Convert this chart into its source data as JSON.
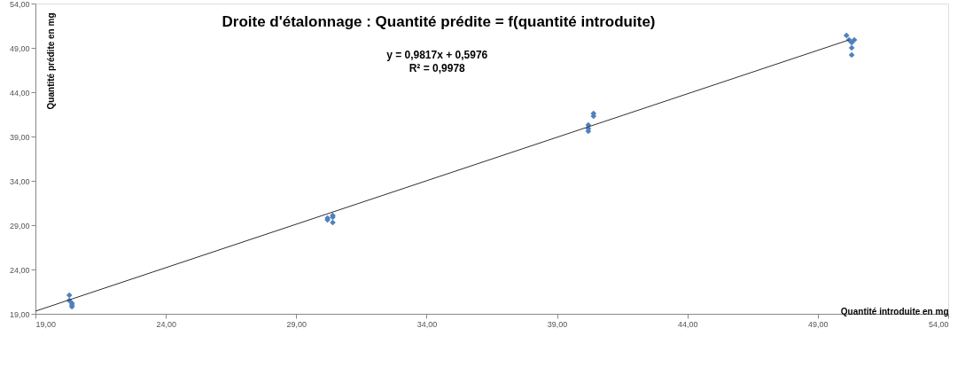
{
  "chart_data": {
    "type": "scatter",
    "title": "Droite d'étalonnage : Quantité prédite = f(quantité introduite)",
    "xlabel": "Quantité introduite en mg",
    "ylabel": "Quantité prédite en mg",
    "series": [
      {
        "color": "#4f81bd",
        "marker": "diamond",
        "x": [
          20.3,
          20.3,
          20.4,
          20.4,
          20.4,
          30.2,
          30.2,
          30.4,
          30.4,
          30.4,
          40.2,
          40.2,
          40.2,
          40.4,
          40.4,
          50.1,
          50.2,
          50.4,
          50.3,
          50.3,
          50.3
        ],
        "values": [
          21.1,
          20.5,
          20.2,
          19.8,
          20.0,
          29.6,
          29.8,
          30.1,
          29.9,
          29.3,
          40.3,
          39.6,
          39.9,
          41.6,
          41.3,
          50.4,
          49.9,
          49.9,
          49.6,
          49.0,
          48.2
        ]
      },
      {
        "type": "line",
        "color": "#303030",
        "line_style": "solid",
        "x": [
          19,
          50.2
        ],
        "values": [
          19.3,
          49.9
        ]
      }
    ],
    "xlim": [
      19,
      54
    ],
    "ylim": [
      19,
      54
    ],
    "xticks": [
      {
        "value": 19,
        "label": "19,00"
      },
      {
        "value": 24,
        "label": "24,00"
      },
      {
        "value": 29,
        "label": "29,00"
      },
      {
        "value": 34,
        "label": "34,00"
      },
      {
        "value": 39,
        "label": "39,00"
      },
      {
        "value": 44,
        "label": "44,00"
      },
      {
        "value": 49,
        "label": "49,00"
      },
      {
        "value": 54,
        "label": "54,00"
      }
    ],
    "yticks": [
      {
        "value": 19,
        "label": "19,00"
      },
      {
        "value": 24,
        "label": "24,00"
      },
      {
        "value": 29,
        "label": "29,00"
      },
      {
        "value": 34,
        "label": "34,00"
      },
      {
        "value": 39,
        "label": "39,00"
      },
      {
        "value": 44,
        "label": "44,00"
      },
      {
        "value": 49,
        "label": "49,00"
      },
      {
        "value": 54,
        "label": "54,00"
      }
    ],
    "annotations": [
      "y = 0,9817x + 0,5976",
      "R² = 0,9978"
    ],
    "grid": false
  }
}
